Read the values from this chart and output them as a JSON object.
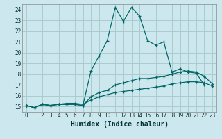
{
  "title": "",
  "xlabel": "Humidex (Indice chaleur)",
  "bg_color": "#cce8ee",
  "grid_color": "#aacccc",
  "line_color": "#006666",
  "x_values": [
    0,
    1,
    2,
    3,
    4,
    5,
    6,
    7,
    8,
    9,
    10,
    11,
    12,
    13,
    14,
    15,
    16,
    17,
    18,
    19,
    20,
    21,
    22,
    23
  ],
  "line1": [
    15.1,
    14.9,
    15.2,
    15.1,
    15.2,
    15.2,
    15.2,
    15.1,
    18.3,
    19.7,
    21.1,
    24.2,
    22.9,
    24.2,
    23.4,
    21.1,
    20.7,
    21.0,
    18.2,
    18.5,
    18.2,
    18.1,
    17.0,
    null
  ],
  "line2": [
    15.1,
    14.9,
    15.2,
    15.1,
    15.2,
    15.2,
    15.2,
    15.1,
    15.9,
    16.3,
    16.5,
    17.0,
    17.2,
    17.4,
    17.6,
    17.6,
    17.7,
    17.8,
    18.0,
    18.2,
    18.3,
    18.2,
    17.8,
    17.1
  ],
  "line3": [
    15.1,
    14.9,
    15.2,
    15.1,
    15.2,
    15.3,
    15.3,
    15.2,
    15.6,
    15.9,
    16.1,
    16.3,
    16.4,
    16.5,
    16.6,
    16.7,
    16.8,
    16.9,
    17.1,
    17.2,
    17.3,
    17.3,
    17.2,
    16.9
  ],
  "ylim": [
    14.5,
    24.5
  ],
  "yticks": [
    15,
    16,
    17,
    18,
    19,
    20,
    21,
    22,
    23,
    24
  ],
  "xlim": [
    -0.5,
    23.5
  ],
  "xticks": [
    0,
    1,
    2,
    3,
    4,
    5,
    6,
    7,
    8,
    9,
    10,
    11,
    12,
    13,
    14,
    15,
    16,
    17,
    18,
    19,
    20,
    21,
    22,
    23
  ]
}
